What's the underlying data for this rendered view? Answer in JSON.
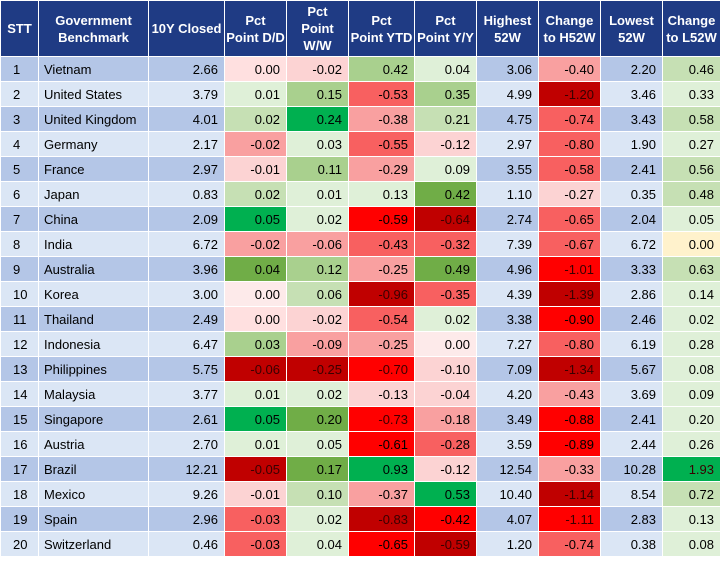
{
  "headers": [
    "STT",
    "Government Benchmark",
    "10Y Closed",
    "Pct Point D/D",
    "Pct Point W/W",
    "Pct Point YTD",
    "Pct Point Y/Y",
    "Highest 52W",
    "Change to H52W",
    "Lowest 52W",
    "Change to L52W"
  ],
  "colors": {
    "header_bg": "#1f3b84",
    "row_odd": "#b4c6e7",
    "row_even": "#dbe6f5",
    "scale_red": [
      "#ffffff",
      "#fcd3d3",
      "#f9a0a0",
      "#f86060",
      "#ff0000",
      "#c00000"
    ],
    "scale_green": [
      "#ffffff",
      "#dff0d8",
      "#c6e0b4",
      "#a9d08e",
      "#70ad47",
      "#00b050"
    ]
  },
  "rows": [
    {
      "stt": "1",
      "country": "Vietnam",
      "closed": "2.66",
      "dd": "0.00",
      "ww": "-0.02",
      "ytd": "0.42",
      "yy": "0.04",
      "h52": "3.06",
      "ch52": "-0.40",
      "l52": "2.20",
      "cl52": "0.46"
    },
    {
      "stt": "2",
      "country": "United States",
      "closed": "3.79",
      "dd": "0.01",
      "ww": "0.15",
      "ytd": "-0.53",
      "yy": "0.35",
      "h52": "4.99",
      "ch52": "-1.20",
      "l52": "3.46",
      "cl52": "0.33"
    },
    {
      "stt": "3",
      "country": "United Kingdom",
      "closed": "4.01",
      "dd": "0.02",
      "ww": "0.24",
      "ytd": "-0.38",
      "yy": "0.21",
      "h52": "4.75",
      "ch52": "-0.74",
      "l52": "3.43",
      "cl52": "0.58"
    },
    {
      "stt": "4",
      "country": "Germany",
      "closed": "2.17",
      "dd": "-0.02",
      "ww": "0.03",
      "ytd": "-0.55",
      "yy": "-0.12",
      "h52": "2.97",
      "ch52": "-0.80",
      "l52": "1.90",
      "cl52": "0.27"
    },
    {
      "stt": "5",
      "country": "France",
      "closed": "2.97",
      "dd": "-0.01",
      "ww": "0.11",
      "ytd": "-0.29",
      "yy": "0.09",
      "h52": "3.55",
      "ch52": "-0.58",
      "l52": "2.41",
      "cl52": "0.56"
    },
    {
      "stt": "6",
      "country": "Japan",
      "closed": "0.83",
      "dd": "0.02",
      "ww": "0.01",
      "ytd": "0.13",
      "yy": "0.42",
      "h52": "1.10",
      "ch52": "-0.27",
      "l52": "0.35",
      "cl52": "0.48"
    },
    {
      "stt": "7",
      "country": "China",
      "closed": "2.09",
      "dd": "0.05",
      "ww": "0.02",
      "ytd": "-0.59",
      "yy": "-0.64",
      "h52": "2.74",
      "ch52": "-0.65",
      "l52": "2.04",
      "cl52": "0.05"
    },
    {
      "stt": "8",
      "country": "India",
      "closed": "6.72",
      "dd": "-0.02",
      "ww": "-0.06",
      "ytd": "-0.43",
      "yy": "-0.32",
      "h52": "7.39",
      "ch52": "-0.67",
      "l52": "6.72",
      "cl52": "0.00"
    },
    {
      "stt": "9",
      "country": "Australia",
      "closed": "3.96",
      "dd": "0.04",
      "ww": "0.12",
      "ytd": "-0.25",
      "yy": "0.49",
      "h52": "4.96",
      "ch52": "-1.01",
      "l52": "3.33",
      "cl52": "0.63"
    },
    {
      "stt": "10",
      "country": "Korea",
      "closed": "3.00",
      "dd": "0.00",
      "ww": "0.06",
      "ytd": "-0.96",
      "yy": "-0.35",
      "h52": "4.39",
      "ch52": "-1.39",
      "l52": "2.86",
      "cl52": "0.14"
    },
    {
      "stt": "11",
      "country": "Thailand",
      "closed": "2.49",
      "dd": "0.00",
      "ww": "-0.02",
      "ytd": "-0.54",
      "yy": "0.02",
      "h52": "3.38",
      "ch52": "-0.90",
      "l52": "2.46",
      "cl52": "0.02"
    },
    {
      "stt": "12",
      "country": "Indonesia",
      "closed": "6.47",
      "dd": "0.03",
      "ww": "-0.09",
      "ytd": "-0.25",
      "yy": "0.00",
      "h52": "7.27",
      "ch52": "-0.80",
      "l52": "6.19",
      "cl52": "0.28"
    },
    {
      "stt": "13",
      "country": "Philippines",
      "closed": "5.75",
      "dd": "-0.06",
      "ww": "-0.25",
      "ytd": "-0.70",
      "yy": "-0.10",
      "h52": "7.09",
      "ch52": "-1.34",
      "l52": "5.67",
      "cl52": "0.08"
    },
    {
      "stt": "14",
      "country": "Malaysia",
      "closed": "3.77",
      "dd": "0.01",
      "ww": "0.02",
      "ytd": "-0.13",
      "yy": "-0.04",
      "h52": "4.20",
      "ch52": "-0.43",
      "l52": "3.69",
      "cl52": "0.09"
    },
    {
      "stt": "15",
      "country": "Singapore",
      "closed": "2.61",
      "dd": "0.05",
      "ww": "0.20",
      "ytd": "-0.73",
      "yy": "-0.18",
      "h52": "3.49",
      "ch52": "-0.88",
      "l52": "2.41",
      "cl52": "0.20"
    },
    {
      "stt": "16",
      "country": "Austria",
      "closed": "2.70",
      "dd": "0.01",
      "ww": "0.05",
      "ytd": "-0.61",
      "yy": "-0.28",
      "h52": "3.59",
      "ch52": "-0.89",
      "l52": "2.44",
      "cl52": "0.26"
    },
    {
      "stt": "17",
      "country": "Brazil",
      "closed": "12.21",
      "dd": "-0.05",
      "ww": "0.17",
      "ytd": "0.93",
      "yy": "-0.12",
      "h52": "12.54",
      "ch52": "-0.33",
      "l52": "10.28",
      "cl52": "1.93"
    },
    {
      "stt": "18",
      "country": "Mexico",
      "closed": "9.26",
      "dd": "-0.01",
      "ww": "0.10",
      "ytd": "-0.37",
      "yy": "0.53",
      "h52": "10.40",
      "ch52": "-1.14",
      "l52": "8.54",
      "cl52": "0.72"
    },
    {
      "stt": "19",
      "country": "Spain",
      "closed": "2.96",
      "dd": "-0.03",
      "ww": "0.02",
      "ytd": "-0.83",
      "yy": "-0.42",
      "h52": "4.07",
      "ch52": "-1.11",
      "l52": "2.83",
      "cl52": "0.13"
    },
    {
      "stt": "20",
      "country": "Switzerland",
      "closed": "0.46",
      "dd": "-0.03",
      "ww": "0.04",
      "ytd": "-0.65",
      "yy": "-0.59",
      "h52": "1.20",
      "ch52": "-0.74",
      "l52": "0.38",
      "cl52": "0.08"
    }
  ]
}
